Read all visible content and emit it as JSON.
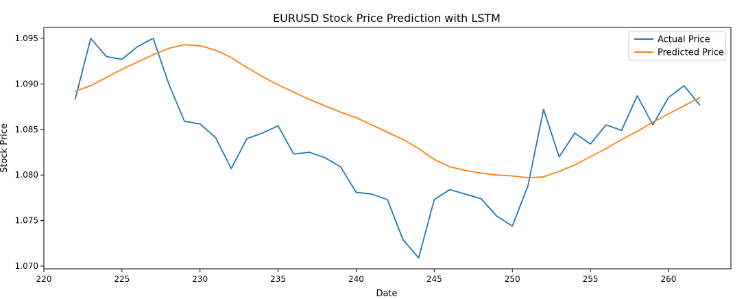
{
  "chart_data": {
    "type": "line",
    "title": "EURUSD Stock Price Prediction with LSTM",
    "xlabel": "Date",
    "ylabel": "Stock Price",
    "xlim": [
      220,
      264
    ],
    "ylim": [
      1.0697,
      1.0962
    ],
    "xticks": [
      220,
      225,
      230,
      235,
      240,
      245,
      250,
      255,
      260
    ],
    "yticks": [
      1.07,
      1.075,
      1.08,
      1.085,
      1.09,
      1.095
    ],
    "xtick_labels": [
      "220",
      "225",
      "230",
      "235",
      "240",
      "245",
      "250",
      "255",
      "260"
    ],
    "ytick_labels": [
      "1.070",
      "1.075",
      "1.080",
      "1.085",
      "1.090",
      "1.095"
    ],
    "grid": false,
    "legend_position": "top-right",
    "x": [
      222,
      223,
      224,
      225,
      226,
      227,
      228,
      229,
      230,
      231,
      232,
      233,
      234,
      235,
      236,
      237,
      238,
      239,
      240,
      241,
      242,
      243,
      244,
      245,
      246,
      247,
      248,
      249,
      250,
      251,
      252,
      253,
      254,
      255,
      256,
      257,
      258,
      259,
      260,
      261,
      262
    ],
    "series": [
      {
        "name": "Actual Price",
        "color": "#1f77b4",
        "values": [
          1.0883,
          1.095,
          1.093,
          1.0927,
          1.0941,
          1.095,
          1.09,
          1.0859,
          1.0856,
          1.0841,
          1.0807,
          1.084,
          1.0846,
          1.0854,
          1.0823,
          1.0825,
          1.0819,
          1.0809,
          1.0781,
          1.0779,
          1.0773,
          1.0729,
          1.0709,
          1.0773,
          1.0784,
          1.0779,
          1.0774,
          1.0755,
          1.0744,
          1.0788,
          1.0872,
          1.082,
          1.0846,
          1.0834,
          1.0855,
          1.0849,
          1.0887,
          1.0855,
          1.0885,
          1.0898,
          1.0877
        ]
      },
      {
        "name": "Predicted Price",
        "color": "#ff7f0e",
        "values": [
          1.0892,
          1.0898,
          1.0907,
          1.0916,
          1.0924,
          1.0932,
          1.0939,
          1.0943,
          1.0942,
          1.0937,
          1.0929,
          1.0918,
          1.0908,
          1.0899,
          1.0891,
          1.0883,
          1.0876,
          1.0869,
          1.0863,
          1.0855,
          1.0847,
          1.0839,
          1.0829,
          1.0817,
          1.0809,
          1.0805,
          1.0802,
          1.08,
          1.0799,
          1.0797,
          1.0798,
          1.0804,
          1.0811,
          1.082,
          1.0829,
          1.0839,
          1.0848,
          1.0858,
          1.0867,
          1.0876,
          1.0885
        ]
      }
    ]
  }
}
